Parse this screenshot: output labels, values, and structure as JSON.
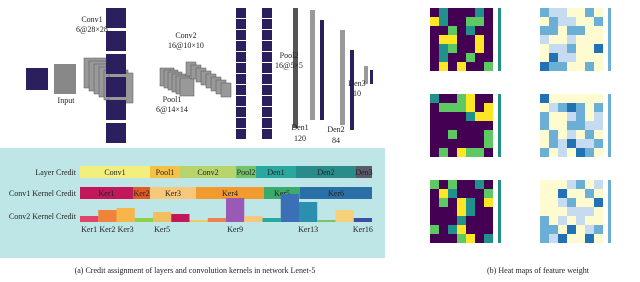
{
  "network": {
    "layers": [
      {
        "name": "Input",
        "shape": null
      },
      {
        "name": "Conv1",
        "shape": "6@28×28"
      },
      {
        "name": "Pool1",
        "shape": "6@14×14"
      },
      {
        "name": "Conv2",
        "shape": "16@10×10"
      },
      {
        "name": "Pool2",
        "shape": "16@5×5"
      },
      {
        "name": "Den1",
        "shape": "120"
      },
      {
        "name": "Den2",
        "shape": "84"
      },
      {
        "name": "Den3",
        "shape": "10"
      }
    ]
  },
  "layer_credit": {
    "label": "Layer Credit",
    "segments": [
      {
        "name": "Conv1",
        "credit": 70,
        "color": "#f3ef7c"
      },
      {
        "name": "Pool1",
        "credit": 30,
        "color": "#f7c146"
      },
      {
        "name": "Conv2",
        "credit": 56,
        "color": "#b8d46c"
      },
      {
        "name": "Pool2",
        "credit": 20,
        "color": "#76c26a"
      },
      {
        "name": "Den1",
        "credit": 40,
        "color": "#2aa79f"
      },
      {
        "name": "Den2",
        "credit": 60,
        "color": "#2a8b8b"
      },
      {
        "name": "Den3",
        "credit": 16,
        "color": "#5a5a6a"
      }
    ]
  },
  "conv1_kernel_credit": {
    "label": "Conv1 Kernel Credit",
    "segments": [
      {
        "name": "Ker1",
        "credit": 53,
        "color": "#c2185b"
      },
      {
        "name": "Ker2",
        "credit": 17,
        "color": "#e05a22"
      },
      {
        "name": "Ker3",
        "credit": 46,
        "color": "#f7c77c"
      },
      {
        "name": "Ker4",
        "credit": 68,
        "color": "#f29a2e"
      },
      {
        "name": "Ker5",
        "credit": 36,
        "color": "#3aab6a"
      },
      {
        "name": "Ker6",
        "credit": 72,
        "color": "#2b6fa8"
      }
    ]
  },
  "conv2_kernel_credit": {
    "label": "Conv2 Kernel Credit",
    "categories": [
      "Ker1",
      "Ker2",
      "Ker3",
      null,
      "Ker5",
      null,
      null,
      null,
      "Ker9",
      null,
      null,
      null,
      "Ker13",
      null,
      null,
      "Ker16"
    ],
    "values": [
      6,
      12,
      14,
      4,
      10,
      8,
      2,
      4,
      24,
      6,
      4,
      28,
      20,
      2,
      12,
      4
    ],
    "colors": [
      "#e0446a",
      "#f0823a",
      "#f7b54a",
      "#8fd04a",
      "#f0c060",
      "#c2185b",
      "#e8d060",
      "#f08050",
      "#9b59b6",
      "#f7c77c",
      "#2aa79f",
      "#3b6fb6",
      "#2b8fb0",
      "#79c36a",
      "#f7d07a",
      "#3b4fa8"
    ]
  },
  "captions": [
    "(a) Credit assignment of layers and convolution kernels in network Lenet-5",
    "(b) Heat maps of feature weight"
  ]
}
